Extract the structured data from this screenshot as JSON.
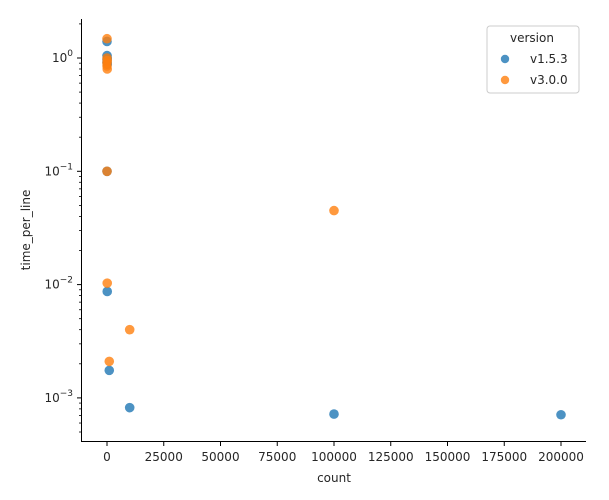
{
  "chart_data": {
    "type": "scatter",
    "title": "",
    "xlabel": "count",
    "ylabel": "time_per_line",
    "xscale": "linear",
    "yscale": "log",
    "xlim": [
      -12000,
      211000
    ],
    "ylim": [
      0.00042,
      2.2
    ],
    "x_ticks": [
      0,
      25000,
      50000,
      75000,
      100000,
      125000,
      150000,
      175000,
      200000
    ],
    "x_tick_labels": [
      "0",
      "25000",
      "50000",
      "75000",
      "100000",
      "125000",
      "150000",
      "175000",
      "200000"
    ],
    "y_ticks": [
      0.001,
      0.01,
      0.1,
      1
    ],
    "y_tick_labels": [
      {
        "base": "10",
        "exp": "−3"
      },
      {
        "base": "10",
        "exp": "−2"
      },
      {
        "base": "10",
        "exp": "−1"
      },
      {
        "base": "10",
        "exp": "0"
      }
    ],
    "grid": false,
    "legend": {
      "title": "version",
      "position": "upper right"
    },
    "series": [
      {
        "name": "v1.5.3",
        "color": "#1f77b4",
        "points": [
          {
            "x": 1,
            "y": 1.4
          },
          {
            "x": 10,
            "y": 1.05
          },
          {
            "x": 100,
            "y": 1.0
          },
          {
            "x": 1,
            "y": 0.97
          },
          {
            "x": 10,
            "y": 0.92
          },
          {
            "x": 100,
            "y": 0.88
          },
          {
            "x": 10,
            "y": 0.1
          },
          {
            "x": 100,
            "y": 0.0087
          },
          {
            "x": 1000,
            "y": 0.00175
          },
          {
            "x": 10000,
            "y": 0.00082
          },
          {
            "x": 100000,
            "y": 0.00072
          },
          {
            "x": 200000,
            "y": 0.00071
          }
        ]
      },
      {
        "name": "v3.0.0",
        "color": "#ff7f0e",
        "points": [
          {
            "x": 1,
            "y": 1.48
          },
          {
            "x": 10,
            "y": 1.0
          },
          {
            "x": 100,
            "y": 0.95
          },
          {
            "x": 1,
            "y": 0.9
          },
          {
            "x": 10,
            "y": 0.85
          },
          {
            "x": 100,
            "y": 0.8
          },
          {
            "x": 10,
            "y": 0.1
          },
          {
            "x": 100,
            "y": 0.0103
          },
          {
            "x": 1000,
            "y": 0.0021
          },
          {
            "x": 10000,
            "y": 0.004
          },
          {
            "x": 100000,
            "y": 0.045
          }
        ]
      }
    ]
  },
  "legend": {
    "title": "version",
    "items": [
      {
        "label": "v1.5.3",
        "color": "#1f77b4"
      },
      {
        "label": "v3.0.0",
        "color": "#ff7f0e"
      }
    ]
  }
}
